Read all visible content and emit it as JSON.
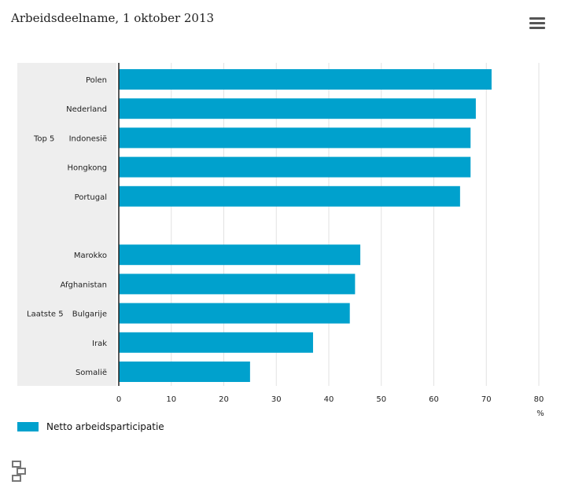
{
  "title": "Arbeidsdeelname, 1 oktober 2013",
  "menu_icon": "hamburger-menu-icon",
  "logo_icon": "cbs-logo-icon",
  "colors": {
    "bar": "#00A1CD",
    "group_band": "#EEEEEE",
    "grid": "#E2E2E2",
    "axis": "#222222"
  },
  "chart_data": {
    "type": "bar",
    "orientation": "horizontal",
    "groups": [
      {
        "label": "Top 5",
        "categories": [
          "Polen",
          "Nederland",
          "Indonesië",
          "Hongkong",
          "Portugal"
        ]
      },
      {
        "label": "Laatste 5",
        "categories": [
          "Marokko",
          "Afghanistan",
          "Bulgarije",
          "Irak",
          "Somalië"
        ]
      }
    ],
    "categories": [
      "Polen",
      "Nederland",
      "Indonesië",
      "Hongkong",
      "Portugal",
      "Marokko",
      "Afghanistan",
      "Bulgarije",
      "Irak",
      "Somalië"
    ],
    "series": [
      {
        "name": "Netto arbeidsparticipatie",
        "values": [
          71,
          68,
          67,
          67,
          65,
          46,
          45,
          44,
          37,
          25
        ]
      }
    ],
    "xlim": [
      0,
      80
    ],
    "xticks": [
      "0",
      "10",
      "20",
      "30",
      "40",
      "50",
      "60",
      "70",
      "80"
    ],
    "unit_label": "%",
    "grid": true,
    "legend_position": "bottom-left"
  }
}
